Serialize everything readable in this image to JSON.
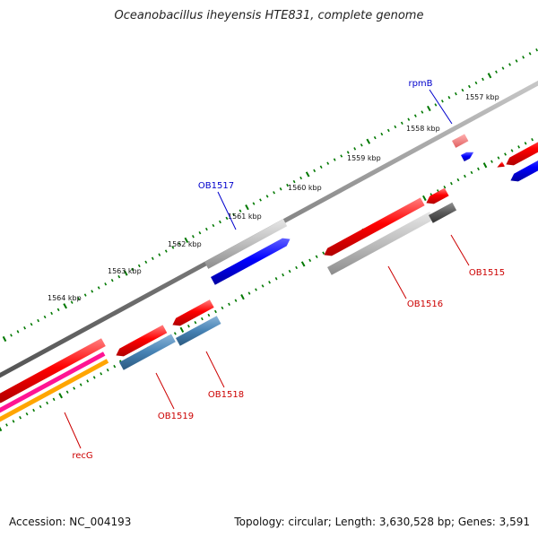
{
  "title": "Oceanobacillus iheyensis HTE831, complete genome",
  "footer": {
    "accession": "Accession: NC_004193",
    "summary": "Topology: circular; Length: 3,630,528 bp; Genes: 3,591"
  },
  "kbp_labels": [
    "1557 kbp",
    "1558 kbp",
    "1559 kbp",
    "1560 kbp",
    "1561 kbp",
    "1562 kbp",
    "1563 kbp",
    "1564 kbp"
  ],
  "gene_labels": {
    "rpmB": "rpmB",
    "ob1517": "OB1517",
    "ob1515": "OB1515",
    "ob1516": "OB1516",
    "ob1518": "OB1518",
    "ob1519": "OB1519",
    "recG": "recG"
  },
  "colors": {
    "backbone": "#808080",
    "red_gene": "#ff0000",
    "blue_gene": "#0000ff",
    "gray_gene": "#b4b4b4",
    "darkgray_gene": "#5a5a5a",
    "steelblue_gene": "#4682b4",
    "magenta_track": "#ff1493",
    "orange_track": "#ffa500",
    "pink_gene": "#f08080",
    "tick_green": "#007800",
    "label_blue": "#0000cc",
    "label_red": "#cc0000"
  }
}
